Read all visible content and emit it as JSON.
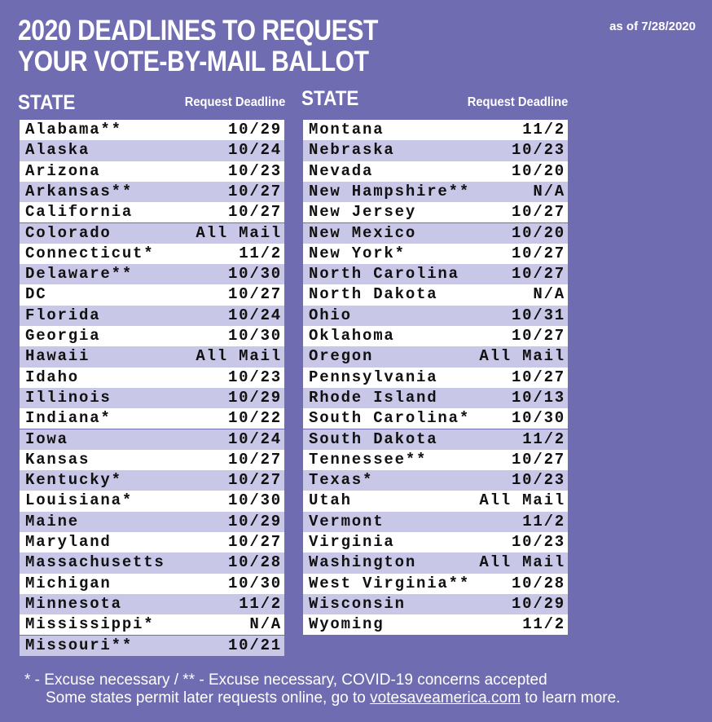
{
  "header": {
    "title": [
      "2020 DEADLINES TO REQUEST",
      "YOUR VOTE-BY-MAIL BALLOT"
    ],
    "date": "as of 7/28/2020"
  },
  "tables": {
    "left": {
      "headers": [
        "STATE",
        "Request Deadline"
      ],
      "rows": [
        [
          "Alabama**",
          "10/29"
        ],
        [
          "Alaska",
          "10/24"
        ],
        [
          "Arizona",
          "10/23"
        ],
        [
          "Arkansas**",
          "10/27"
        ],
        [
          "California",
          "10/27"
        ],
        [
          "Colorado",
          "All Mail"
        ],
        [
          "Connecticut*",
          "11/2"
        ],
        [
          "Delaware**",
          "10/30"
        ],
        [
          "DC",
          "10/27"
        ],
        [
          "Florida",
          "10/24"
        ],
        [
          "Georgia",
          "10/30"
        ],
        [
          "Hawaii",
          "All Mail"
        ],
        [
          "Idaho",
          "10/23"
        ],
        [
          "Illinois",
          "10/29"
        ],
        [
          "Indiana*",
          "10/22"
        ],
        [
          "Iowa",
          "10/24"
        ],
        [
          "Kansas",
          "10/27"
        ],
        [
          "Kentucky*",
          "10/27"
        ],
        [
          "Louisiana*",
          "10/30"
        ],
        [
          "Maine",
          "10/29"
        ],
        [
          "Maryland",
          "10/27"
        ],
        [
          "Massachusetts",
          "10/28"
        ],
        [
          "Michigan",
          "10/30"
        ],
        [
          "Minnesota",
          "11/2"
        ],
        [
          "Mississippi*",
          "N/A"
        ],
        [
          "Missouri**",
          "10/21"
        ]
      ]
    },
    "right": {
      "headers": [
        "STATE",
        "Request Deadline"
      ],
      "rows": [
        [
          "Montana",
          "11/2"
        ],
        [
          "Nebraska",
          "10/23"
        ],
        [
          "Nevada",
          "10/20"
        ],
        [
          "New Hampshire**",
          "N/A"
        ],
        [
          "New Jersey",
          "10/27"
        ],
        [
          "New Mexico",
          "10/20"
        ],
        [
          "New York*",
          "10/27"
        ],
        [
          "North Carolina",
          "10/27"
        ],
        [
          "North Dakota",
          "N/A"
        ],
        [
          "Ohio",
          "10/31"
        ],
        [
          "Oklahoma",
          "10/27"
        ],
        [
          "Oregon",
          "All Mail"
        ],
        [
          "Pennsylvania",
          "10/27"
        ],
        [
          "Rhode Island",
          "10/13"
        ],
        [
          "South Carolina*",
          "10/30"
        ],
        [
          "South Dakota",
          "11/2"
        ],
        [
          "Tennessee**",
          "10/27"
        ],
        [
          "Texas*",
          "10/23"
        ],
        [
          "Utah",
          "All Mail"
        ],
        [
          "Vermont",
          "11/2"
        ],
        [
          "Virginia",
          "10/23"
        ],
        [
          "Washington",
          "All Mail"
        ],
        [
          "West Virginia**",
          "10/28"
        ],
        [
          "Wisconsin",
          "10/29"
        ],
        [
          "Wyoming",
          "11/2"
        ]
      ]
    }
  },
  "footer": {
    "legend": "* - Excuse necessary /  ** - Excuse necessary, COVID-19 concerns accepted",
    "note": [
      "Some states permit later requests online, go to",
      "votesaveamerica.com",
      "to learn more."
    ]
  }
}
